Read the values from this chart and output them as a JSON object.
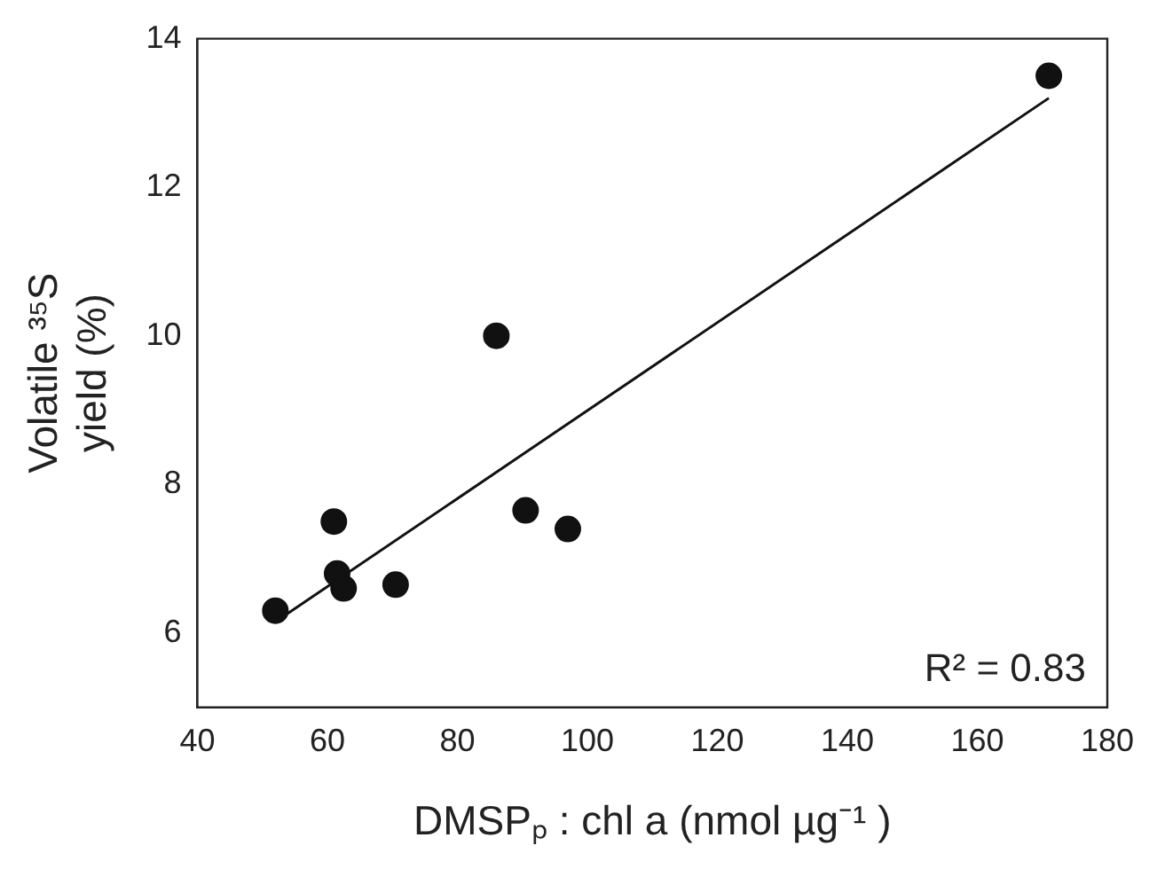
{
  "chart_data": {
    "type": "scatter",
    "xlabel": "DMSPₚ : chl a (nmol µg⁻¹ )",
    "ylabel": "Volatile ³⁵S\nyield (%)",
    "xlim": [
      40,
      180
    ],
    "xticks": [
      40,
      60,
      80,
      100,
      120,
      140,
      160,
      180
    ],
    "ylim": [
      5,
      14
    ],
    "yticks": [
      6,
      8,
      10,
      12,
      14
    ],
    "grid": false,
    "legend": false,
    "marker": "circle",
    "annotations": [
      "R² = 0.83"
    ],
    "series": [
      {
        "type": "scatter",
        "color": "#111111",
        "x": [
          52,
          61,
          61.5,
          62.5,
          70.5,
          86,
          90.5,
          97,
          171
        ],
        "values": [
          6.3,
          7.5,
          6.8,
          6.6,
          6.65,
          10,
          7.65,
          7.4,
          13.5
        ]
      },
      {
        "type": "line",
        "color": "#111111",
        "marker": "none",
        "line_style": "solid",
        "x": [
          52,
          171
        ],
        "values": [
          6.15,
          13.2
        ]
      }
    ]
  }
}
